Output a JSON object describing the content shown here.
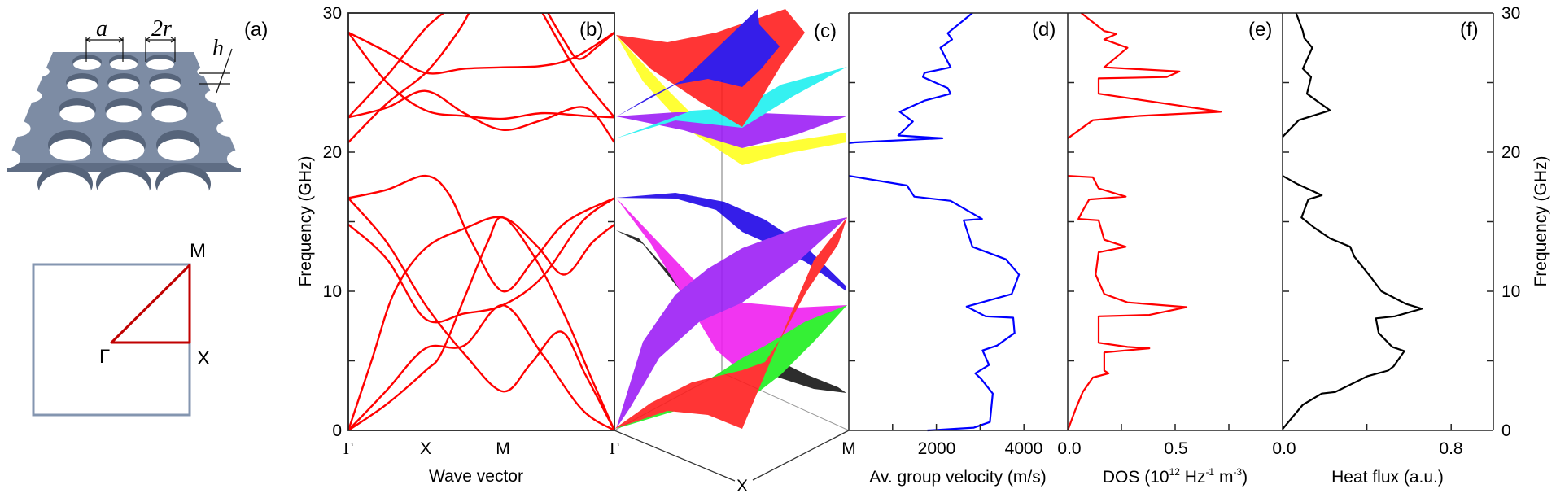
{
  "panel_labels": {
    "a": "(a)",
    "b": "(b)",
    "c": "(c)",
    "d": "(d)",
    "e": "(e)",
    "f": "(f)"
  },
  "panel_a": {
    "dim_a": "a",
    "dim_2r": "2r",
    "dim_h": "h",
    "bz_points": {
      "M": "M",
      "Gamma": "Γ",
      "X": "X"
    },
    "plate_color": "#7d8ca4",
    "bz_square_color": "#8496b0",
    "path_color": "#c00000"
  },
  "chart_data": [
    {
      "type": "line",
      "title": "(b)",
      "xlabel": "Wave vector",
      "ylabel": "Frequency (GHz)",
      "ylim": [
        0,
        30
      ],
      "yticks": [
        "0",
        "10",
        "20",
        "30"
      ],
      "xticks": [
        "Γ",
        "X",
        "M",
        "Γ"
      ],
      "color": "#ff0000",
      "series": [
        {
          "points": [
            [
              0,
              0
            ],
            [
              0.5,
              1.9
            ],
            [
              1,
              4.3
            ],
            [
              1.2,
              5.5
            ],
            [
              1.5,
              9.5
            ],
            [
              1.8,
              13.5
            ],
            [
              2,
              15.3
            ],
            [
              2.28,
              12.5
            ],
            [
              2.57,
              8
            ],
            [
              2.78,
              4
            ],
            [
              3,
              0
            ]
          ]
        },
        {
          "points": [
            [
              0,
              0
            ],
            [
              0.5,
              2.9
            ],
            [
              1,
              5.9
            ],
            [
              1.5,
              6.1
            ],
            [
              2,
              9.0
            ],
            [
              2.35,
              5.5
            ],
            [
              2.71,
              1.5
            ],
            [
              3,
              0
            ]
          ]
        },
        {
          "points": [
            [
              0,
              0
            ],
            [
              0.3,
              5
            ],
            [
              0.6,
              10
            ],
            [
              1,
              13.1
            ],
            [
              1.5,
              14.5
            ],
            [
              2,
              15.3
            ],
            [
              2.3,
              13.3
            ],
            [
              2.55,
              11.2
            ],
            [
              2.8,
              13.5
            ],
            [
              3,
              14.8
            ]
          ]
        },
        {
          "points": [
            [
              0,
              16.7
            ],
            [
              0.5,
              17.3
            ],
            [
              1,
              18.3
            ],
            [
              1.3,
              17
            ],
            [
              1.6,
              13.5
            ],
            [
              2,
              10.0
            ],
            [
              2.28,
              12.3
            ],
            [
              2.57,
              15
            ],
            [
              3,
              16.7
            ]
          ]
        },
        {
          "points": [
            [
              0,
              16.7
            ],
            [
              0.5,
              13.5
            ],
            [
              1,
              9.0
            ],
            [
              1.5,
              5.5
            ],
            [
              2,
              2.8
            ],
            [
              2.25,
              4.8
            ],
            [
              2.52,
              7.1
            ],
            [
              2.74,
              4
            ],
            [
              3,
              0
            ]
          ]
        },
        {
          "points": [
            [
              0,
              14.8
            ],
            [
              0.5,
              12.3
            ],
            [
              1,
              8.0
            ],
            [
              1.5,
              8.4
            ],
            [
              2,
              9.0
            ],
            [
              2.35,
              11
            ],
            [
              2.71,
              15
            ],
            [
              3,
              16.7
            ]
          ]
        },
        {
          "points": [
            [
              0,
              22.5
            ],
            [
              0.5,
              25.5
            ],
            [
              1,
              28.9
            ],
            [
              1.28,
              30.2
            ]
          ]
        },
        {
          "points": [
            [
              0,
              20.7
            ],
            [
              0.5,
              23.5
            ],
            [
              1,
              25.7
            ],
            [
              1.4,
              28.5
            ],
            [
              1.58,
              30.2
            ]
          ]
        },
        {
          "points": [
            [
              0,
              28.6
            ],
            [
              0.5,
              27.2
            ],
            [
              1,
              25.7
            ],
            [
              1.5,
              26.0
            ],
            [
              2,
              26.1
            ],
            [
              2.35,
              26.2
            ],
            [
              2.64,
              26.8
            ],
            [
              3,
              28.6
            ]
          ]
        },
        {
          "points": [
            [
              0,
              28.6
            ],
            [
              0.5,
              25
            ],
            [
              1,
              23.0
            ],
            [
              1.5,
              22.6
            ],
            [
              2,
              22.4
            ],
            [
              2.35,
              22.8
            ],
            [
              2.74,
              22.6
            ],
            [
              3,
              22.5
            ]
          ]
        },
        {
          "points": [
            [
              0,
              22.5
            ],
            [
              0.5,
              23.2
            ],
            [
              1,
              24.4
            ],
            [
              1.5,
              22.8
            ],
            [
              2,
              21.6
            ],
            [
              2.35,
              22.3
            ],
            [
              2.74,
              23.2
            ],
            [
              3,
              20.7
            ]
          ]
        },
        {
          "points": [
            [
              2.34,
              30.2
            ],
            [
              2.65,
              26
            ],
            [
              3,
              22.5
            ]
          ]
        },
        {
          "points": [
            [
              2.39,
              30.2
            ],
            [
              2.55,
              28
            ],
            [
              2.68,
              26.7
            ],
            [
              2.85,
              27.6
            ],
            [
              3,
              28.6
            ]
          ]
        }
      ]
    },
    {
      "type": "surface",
      "title": "(c)",
      "corner_labels": [
        "X",
        "M"
      ],
      "surface_colors": {
        "red": "#ff1a1a",
        "blue": "#1a00e6",
        "cyan": "#1af0f0",
        "purple": "#9a1af5",
        "yellow": "#ffff1a",
        "magenta": "#f01af0",
        "black": "#111111",
        "green": "#1aee1a"
      }
    },
    {
      "type": "line",
      "title": "(d)",
      "xlabel": "Av. group velocity (m/s)",
      "xlim": [
        0,
        5000
      ],
      "xticks": [
        "2000",
        "4000"
      ],
      "ylim": [
        0,
        30
      ],
      "corner_label": "M",
      "color": "#0000ff",
      "segments": [
        [
          [
            2824,
            30
          ],
          [
            2259,
            28.55
          ],
          [
            2359,
            28.1
          ],
          [
            2093,
            27.5
          ],
          [
            2326,
            26.1
          ],
          [
            1728,
            25.7
          ],
          [
            1694,
            25.4
          ],
          [
            2259,
            24.6
          ],
          [
            2326,
            24.2
          ],
          [
            1728,
            23.7
          ],
          [
            1163,
            22.9
          ],
          [
            1462,
            22.2
          ],
          [
            1130,
            21.2
          ],
          [
            2140,
            21.0
          ],
          [
            133,
            20.7
          ],
          [
            0,
            20.65
          ]
        ],
        [
          [
            0,
            18.3
          ],
          [
            1329,
            17.6
          ],
          [
            1495,
            16.8
          ],
          [
            2326,
            16.5
          ],
          [
            3043,
            15.2
          ],
          [
            2625,
            15.1
          ],
          [
            2824,
            13.2
          ],
          [
            3588,
            12.3
          ],
          [
            3887,
            11.2
          ],
          [
            3721,
            9.8
          ],
          [
            2691,
            8.9
          ],
          [
            3123,
            8.2
          ],
          [
            3754,
            8.1
          ],
          [
            3787,
            7.0
          ],
          [
            3389,
            6.1
          ],
          [
            3056,
            5.75
          ],
          [
            3203,
            4.7
          ],
          [
            2890,
            4.1
          ],
          [
            3023,
            3.7
          ],
          [
            3289,
            2.65
          ],
          [
            3223,
            0.6
          ],
          [
            2857,
            0.2
          ],
          [
            1794,
            0
          ]
        ]
      ]
    },
    {
      "type": "line",
      "title": "(e)",
      "xlabel_parts": [
        "DOS (10",
        "12",
        " Hz",
        "-1",
        " m",
        "-3",
        ")"
      ],
      "xlim": [
        0,
        1.0
      ],
      "xticks": [
        "0.0",
        "0.5"
      ],
      "ylim": [
        0,
        30
      ],
      "color": "#ff0000",
      "segments": [
        [
          [
            0.063,
            30
          ],
          [
            0.17,
            28.7
          ],
          [
            0.227,
            28.5
          ],
          [
            0.17,
            28.1
          ],
          [
            0.278,
            27.5
          ],
          [
            0.17,
            26.1
          ],
          [
            0.52,
            25.8
          ],
          [
            0.46,
            25.4
          ],
          [
            0.144,
            25.3
          ],
          [
            0.144,
            24.2
          ],
          [
            0.713,
            22.9
          ],
          [
            0.33,
            22.6
          ],
          [
            0.117,
            22.3
          ],
          [
            0.01,
            21.1
          ],
          [
            0,
            21.0
          ]
        ],
        [
          [
            0,
            18.3
          ],
          [
            0.117,
            18.2
          ],
          [
            0.144,
            17.4
          ],
          [
            0.27,
            16.8
          ],
          [
            0.1,
            16.6
          ],
          [
            0.07,
            15.8
          ],
          [
            0.05,
            15.2
          ],
          [
            0.144,
            15.1
          ],
          [
            0.17,
            13.7
          ],
          [
            0.27,
            13.2
          ],
          [
            0.144,
            12.8
          ],
          [
            0.13,
            11.2
          ],
          [
            0.17,
            9.8
          ],
          [
            0.278,
            9.2
          ],
          [
            0.553,
            8.86
          ],
          [
            0.38,
            8.3
          ],
          [
            0.144,
            8.2
          ],
          [
            0.144,
            6.3
          ],
          [
            0.278,
            6.0
          ],
          [
            0.38,
            5.9
          ],
          [
            0.17,
            5.6
          ],
          [
            0.17,
            4.3
          ],
          [
            0.19,
            4.1
          ],
          [
            0.117,
            3.8
          ],
          [
            0.07,
            2.76
          ],
          [
            0.036,
            1.5
          ],
          [
            0,
            0
          ]
        ]
      ]
    },
    {
      "type": "line",
      "title": "(f)",
      "xlabel": "Heat flux (a.u.)",
      "ylabel": "Frequency (GHz)",
      "xlim": [
        0,
        1.0
      ],
      "xticks": [
        "0.0",
        "0.8"
      ],
      "ylim": [
        0,
        30
      ],
      "yticks": [
        "0",
        "10",
        "20",
        "30"
      ],
      "color": "#000000",
      "segments": [
        [
          [
            0.064,
            30
          ],
          [
            0.096,
            28.7
          ],
          [
            0.103,
            28.2
          ],
          [
            0.141,
            27.5
          ],
          [
            0.096,
            26.0
          ],
          [
            0.135,
            25.4
          ],
          [
            0.116,
            24.2
          ],
          [
            0.225,
            23.0
          ],
          [
            0.077,
            22.3
          ],
          [
            0,
            21.1
          ]
        ],
        [
          [
            0,
            18.3
          ],
          [
            0.071,
            17.7
          ],
          [
            0.186,
            16.9
          ],
          [
            0.122,
            16.6
          ],
          [
            0.09,
            15.3
          ],
          [
            0.148,
            14.6
          ],
          [
            0.225,
            13.8
          ],
          [
            0.321,
            13.2
          ],
          [
            0.34,
            12.5
          ],
          [
            0.417,
            11.05
          ],
          [
            0.469,
            10.0
          ],
          [
            0.584,
            9.1
          ],
          [
            0.661,
            8.75
          ],
          [
            0.533,
            8.2
          ],
          [
            0.443,
            8.05
          ],
          [
            0.456,
            7.0
          ],
          [
            0.52,
            6.0
          ],
          [
            0.578,
            5.7
          ],
          [
            0.527,
            4.6
          ],
          [
            0.5,
            4.3
          ],
          [
            0.404,
            3.9
          ],
          [
            0.25,
            2.76
          ],
          [
            0.186,
            2.65
          ],
          [
            0.096,
            1.84
          ],
          [
            0,
            0.1
          ]
        ]
      ]
    }
  ]
}
